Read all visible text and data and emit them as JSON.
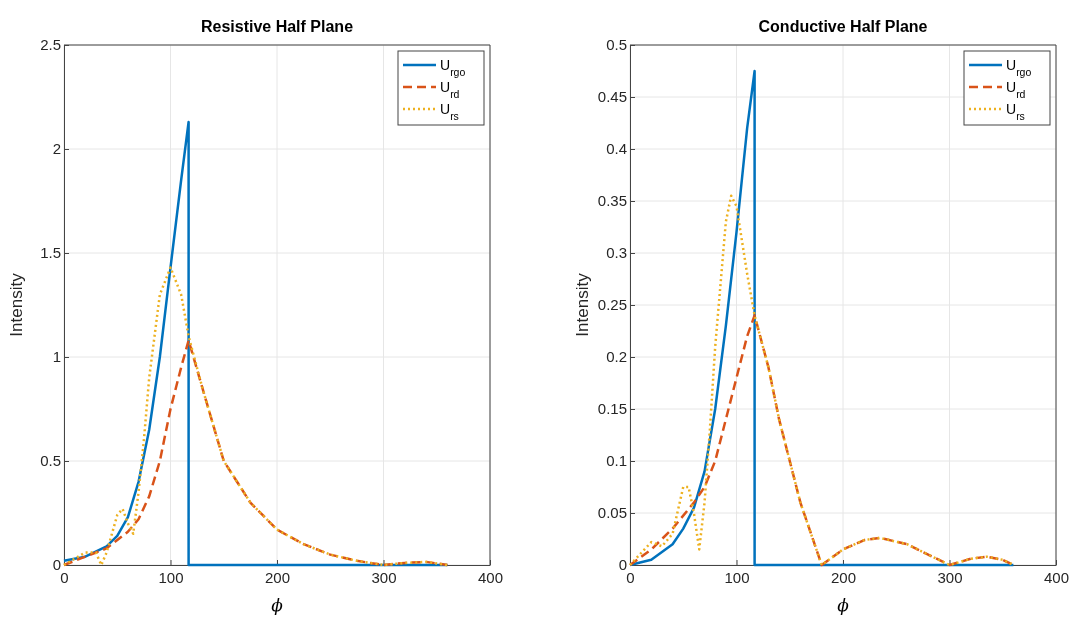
{
  "chart_data": [
    {
      "type": "line",
      "title": "Resistive Half Plane",
      "xlabel": "ϕ",
      "ylabel": "Intensity",
      "xlim": [
        0,
        400
      ],
      "xticks": [
        0,
        100,
        200,
        300,
        400
      ],
      "ylim": [
        0,
        2.5
      ],
      "yticks": [
        0,
        0.5,
        1,
        1.5,
        2,
        2.5
      ],
      "grid": true,
      "legend": "top right",
      "series": [
        {
          "name": "U$_{rgo}$",
          "color": "#0072bd",
          "line_style": "solid",
          "x": [
            0,
            20,
            40,
            50,
            60,
            70,
            80,
            90,
            100,
            110,
            117,
            117,
            360
          ],
          "values": [
            0.02,
            0.04,
            0.09,
            0.14,
            0.23,
            0.4,
            0.65,
            1.0,
            1.43,
            1.85,
            2.13,
            0,
            0
          ]
        },
        {
          "name": "U$_{rd}$",
          "color": "#d95319",
          "line_style": "dashed",
          "x": [
            0,
            20,
            40,
            60,
            70,
            80,
            90,
            100,
            110,
            117,
            130,
            150,
            175,
            200,
            225,
            250,
            275,
            300,
            320,
            340,
            360
          ],
          "values": [
            0,
            0.04,
            0.08,
            0.16,
            0.22,
            0.33,
            0.5,
            0.75,
            0.95,
            1.08,
            0.85,
            0.5,
            0.3,
            0.17,
            0.1,
            0.05,
            0.02,
            0,
            0.01,
            0.015,
            0
          ]
        },
        {
          "name": "U$_{rs}$",
          "color": "#edb120",
          "line_style": "dotted",
          "x": [
            0,
            20,
            30,
            35,
            40,
            50,
            55,
            60,
            65,
            70,
            75,
            80,
            90,
            100,
            110,
            117,
            130,
            150,
            175,
            200,
            225,
            250,
            275,
            300,
            320,
            340,
            360
          ],
          "values": [
            0,
            0.06,
            0.06,
            0,
            0.06,
            0.24,
            0.27,
            0.2,
            0.15,
            0.35,
            0.6,
            0.9,
            1.3,
            1.43,
            1.3,
            1.1,
            0.85,
            0.5,
            0.3,
            0.17,
            0.1,
            0.05,
            0.02,
            0,
            0.01,
            0.015,
            0
          ]
        }
      ]
    },
    {
      "type": "line",
      "title": "Conductive Half Plane",
      "xlabel": "ϕ",
      "ylabel": "Intensity",
      "xlim": [
        0,
        400
      ],
      "xticks": [
        0,
        100,
        200,
        300,
        400
      ],
      "ylim": [
        0,
        0.5
      ],
      "yticks": [
        0,
        0.05,
        0.1,
        0.15,
        0.2,
        0.25,
        0.3,
        0.35,
        0.4,
        0.45,
        0.5
      ],
      "grid": true,
      "legend": "top right",
      "series": [
        {
          "name": "U$_{rgo}$",
          "color": "#0072bd",
          "line_style": "solid",
          "x": [
            0,
            20,
            40,
            50,
            60,
            70,
            80,
            90,
            100,
            110,
            117,
            117,
            360
          ],
          "values": [
            0,
            0.005,
            0.02,
            0.035,
            0.055,
            0.09,
            0.15,
            0.23,
            0.32,
            0.42,
            0.475,
            0,
            0
          ]
        },
        {
          "name": "U$_{rd}$",
          "color": "#d95319",
          "line_style": "dashed",
          "x": [
            0,
            20,
            40,
            60,
            70,
            80,
            90,
            100,
            110,
            117,
            130,
            140,
            150,
            160,
            170,
            180,
            200,
            220,
            235,
            260,
            280,
            300,
            320,
            335,
            350,
            360
          ],
          "values": [
            0,
            0.015,
            0.035,
            0.06,
            0.075,
            0.1,
            0.14,
            0.18,
            0.22,
            0.24,
            0.19,
            0.14,
            0.1,
            0.06,
            0.03,
            0,
            0.015,
            0.024,
            0.026,
            0.02,
            0.01,
            0,
            0.006,
            0.008,
            0.005,
            0
          ]
        },
        {
          "name": "U$_{rs}$",
          "color": "#edb120",
          "line_style": "dotted",
          "x": [
            0,
            20,
            30,
            40,
            50,
            55,
            60,
            65,
            70,
            75,
            80,
            90,
            95,
            100,
            110,
            117,
            130,
            140,
            150,
            160,
            170,
            180,
            200,
            220,
            235,
            260,
            280,
            300,
            320,
            335,
            350,
            360
          ],
          "values": [
            0,
            0.022,
            0.018,
            0.03,
            0.075,
            0.075,
            0.05,
            0.015,
            0.06,
            0.13,
            0.21,
            0.33,
            0.355,
            0.345,
            0.28,
            0.24,
            0.19,
            0.14,
            0.1,
            0.06,
            0.03,
            0,
            0.015,
            0.024,
            0.026,
            0.02,
            0.01,
            0,
            0.006,
            0.008,
            0.005,
            0
          ]
        }
      ]
    }
  ]
}
